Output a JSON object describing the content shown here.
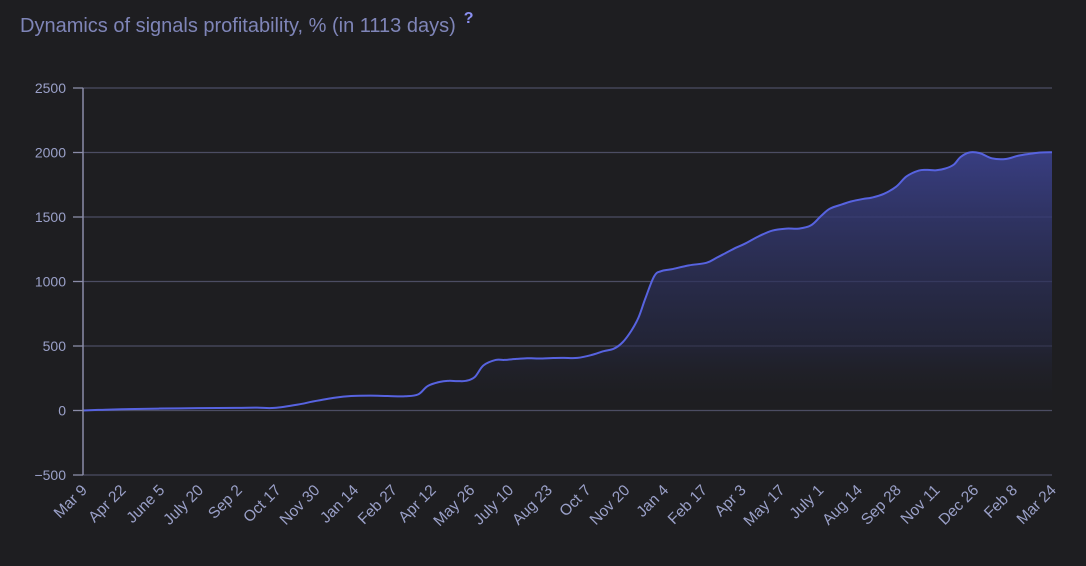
{
  "header": {
    "title": "Dynamics of signals profitability, % (in 1113 days)",
    "help_label": "?"
  },
  "colors": {
    "background": "#1e1e21",
    "grid": "#4c4d63",
    "axis": "#8a8ca8",
    "line": "#5763e0",
    "fill_top": "#3b418c",
    "tick_text": "#9aa0c8",
    "title": "#7f85b8",
    "help": "#8a8ff0"
  },
  "chart_data": {
    "type": "area",
    "title": "Dynamics of signals profitability, % (in 1113 days)",
    "xlabel": "",
    "ylabel": "",
    "ylim": [
      -500,
      2500
    ],
    "yticks": [
      2500,
      2000,
      1500,
      1000,
      500,
      0,
      -500
    ],
    "x_tick_labels": [
      "Mar 9",
      "Apr 22",
      "June 5",
      "July 20",
      "Sep 2",
      "Oct 17",
      "Nov 30",
      "Jan 14",
      "Feb 27",
      "Apr 12",
      "May 26",
      "July 10",
      "Aug 23",
      "Oct 7",
      "Nov 20",
      "Jan 4",
      "Feb 17",
      "Apr 3",
      "May 17",
      "July 1",
      "Aug 14",
      "Sep 28",
      "Nov 11",
      "Dec 26",
      "Feb 8",
      "Mar 24"
    ],
    "x_range_days": [
      0,
      1113
    ],
    "grid": true,
    "legend": "none",
    "series": [
      {
        "x_days": [
          0,
          20,
          44,
          88,
          132,
          176,
          200,
          220,
          250,
          264,
          290,
          308,
          330,
          350,
          370,
          385,
          396,
          410,
          420,
          430,
          440,
          450,
          460,
          474,
          484,
          498,
          510,
          518,
          528,
          540,
          552,
          568,
          584,
          598,
          610,
          620,
          630,
          638,
          646,
          656,
          664,
          676,
          696,
          716,
          728,
          738,
          750,
          760,
          776,
          792,
          808,
          822,
          836,
          848,
          858,
          872,
          882,
          896,
          906,
          920,
          934,
          946,
          960,
          970,
          980,
          990,
          1000,
          1008,
          1018,
          1030,
          1044,
          1060,
          1074,
          1088,
          1100,
          1113
        ],
        "values": [
          0,
          5,
          10,
          15,
          18,
          20,
          22,
          20,
          50,
          70,
          100,
          112,
          115,
          112,
          110,
          125,
          190,
          222,
          230,
          228,
          230,
          260,
          350,
          392,
          392,
          400,
          405,
          404,
          403,
          407,
          408,
          408,
          430,
          460,
          480,
          530,
          620,
          720,
          870,
          1040,
          1080,
          1095,
          1125,
          1145,
          1185,
          1220,
          1262,
          1292,
          1350,
          1395,
          1410,
          1410,
          1435,
          1510,
          1565,
          1598,
          1620,
          1640,
          1650,
          1680,
          1735,
          1815,
          1860,
          1865,
          1862,
          1875,
          1905,
          1965,
          2000,
          1995,
          1955,
          1950,
          1975,
          1990,
          2000,
          2002
        ]
      }
    ]
  }
}
